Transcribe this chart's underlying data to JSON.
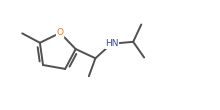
{
  "bond_color": "#505050",
  "bg_color": "#ffffff",
  "O_color": "#e07828",
  "N_color": "#3050a0",
  "line_width": 1.4,
  "figsize": [
    2.2,
    1.1
  ],
  "dpi": 100,
  "xlim": [
    0.0,
    10.0
  ],
  "ylim": [
    0.0,
    5.0
  ]
}
